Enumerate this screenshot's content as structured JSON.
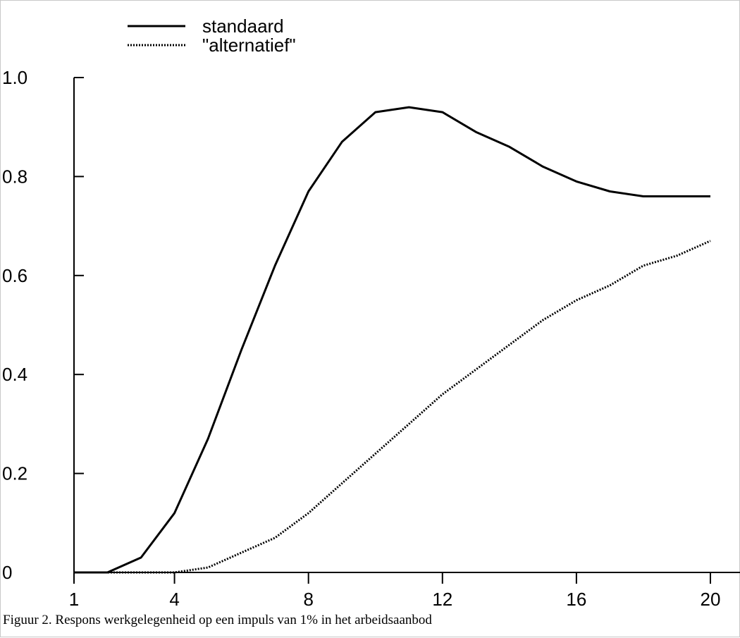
{
  "caption": "Figuur 2. Respons werkgelegenheid op een impuls van 1% in het arbeidsaanbod",
  "chart_data": {
    "type": "line",
    "title": "",
    "xlabel": "",
    "ylabel": "",
    "xlim": [
      1,
      20
    ],
    "ylim": [
      0,
      1.0
    ],
    "x_ticks": [
      1,
      4,
      8,
      12,
      16,
      20
    ],
    "x_tick_labels": [
      "1",
      "4",
      "8",
      "12",
      "16",
      "20"
    ],
    "y_ticks": [
      0,
      0.2,
      0.4,
      0.6,
      0.8,
      1.0
    ],
    "y_tick_labels": [
      "0",
      "0.2",
      "0.4",
      "0.6",
      "0.8",
      "1.0"
    ],
    "grid": false,
    "legend_position": "top-left",
    "x": [
      1,
      2,
      3,
      4,
      5,
      6,
      7,
      8,
      9,
      10,
      11,
      12,
      13,
      14,
      15,
      16,
      17,
      18,
      19,
      20
    ],
    "series": [
      {
        "name": "standaard",
        "style": "solid",
        "color": "#000000",
        "values": [
          0,
          0,
          0.03,
          0.12,
          0.27,
          0.45,
          0.62,
          0.77,
          0.87,
          0.93,
          0.94,
          0.93,
          0.89,
          0.86,
          0.82,
          0.79,
          0.77,
          0.76,
          0.76,
          0.76
        ]
      },
      {
        "name": "\"alternatief\"",
        "style": "dotted",
        "color": "#000000",
        "values": [
          0,
          0,
          0,
          0,
          0.01,
          0.04,
          0.07,
          0.12,
          0.18,
          0.24,
          0.3,
          0.36,
          0.41,
          0.46,
          0.51,
          0.55,
          0.58,
          0.62,
          0.64,
          0.67
        ]
      }
    ]
  }
}
